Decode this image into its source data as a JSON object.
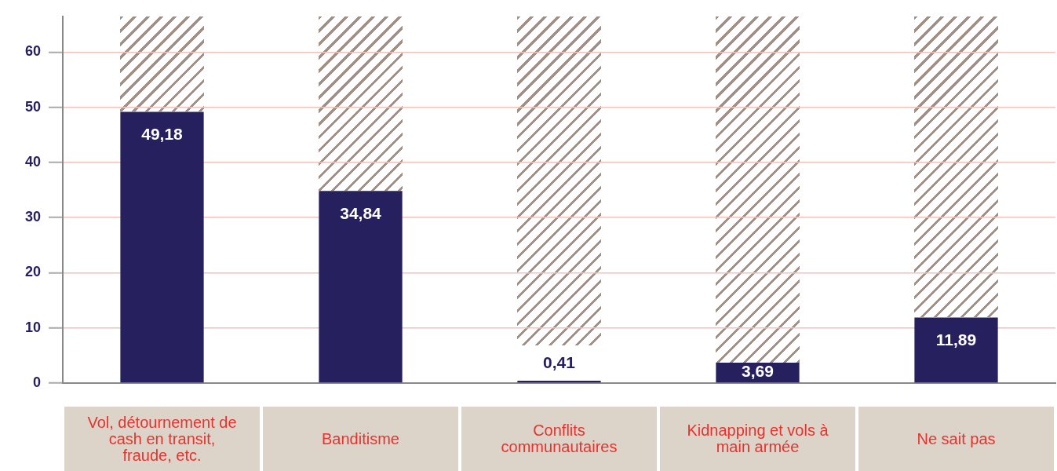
{
  "chart_data": {
    "type": "bar",
    "categories": [
      "Vol, détournement de cash en transit, fraude, etc.",
      "Banditisme",
      "Conflits communautaires",
      "Kidnapping et vols à main armée",
      "Ne sait pas"
    ],
    "values": [
      49.18,
      34.84,
      0.41,
      3.69,
      11.89
    ],
    "value_labels": [
      "49,18",
      "34,84",
      "0,41",
      "3,69",
      "11,89"
    ],
    "color": "#26205f",
    "ylim": [
      0,
      66.5
    ],
    "yticks": [
      0,
      10,
      20,
      30,
      40,
      50,
      60
    ],
    "grid": "y",
    "legend": false
  }
}
